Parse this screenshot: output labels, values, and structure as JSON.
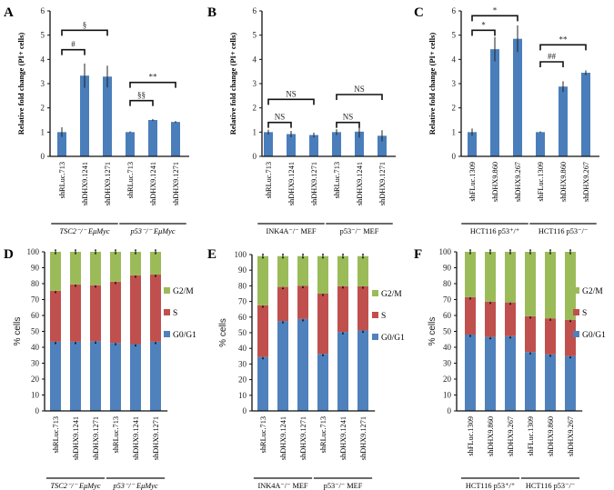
{
  "chart_data": [
    {
      "panel": "A",
      "type": "bar",
      "ylabel": "Relative fold change (PI+ cells)",
      "ylim": [
        0,
        6
      ],
      "yticks": [
        0,
        1,
        2,
        3,
        4,
        5,
        6
      ],
      "categories": [
        "shRLuc.713",
        "shDHX9.1241",
        "shDHX9.1271",
        "shRLuc.713",
        "shDHX9.1241",
        "shDHX9.1271"
      ],
      "groups": [
        {
          "label": "TSC2⁻/⁻ EμMyc",
          "start": 0,
          "end": 2
        },
        {
          "label": "p53⁻/⁻ EμMyc",
          "start": 3,
          "end": 5
        }
      ],
      "values": [
        1.0,
        3.33,
        3.29,
        1.0,
        1.5,
        1.42
      ],
      "errors": [
        0.2,
        0.5,
        0.45,
        0.03,
        0.04,
        0.04
      ],
      "significance": [
        {
          "from": 0,
          "to": 1,
          "label": "#",
          "level": 4.4
        },
        {
          "from": 0,
          "to": 2,
          "label": "§",
          "level": 5.2
        },
        {
          "from": 3,
          "to": 4,
          "label": "§§",
          "level": 2.3
        },
        {
          "from": 3,
          "to": 5,
          "label": "**",
          "level": 3.05
        }
      ]
    },
    {
      "panel": "B",
      "type": "bar",
      "ylabel": "Relative fold change (PI+ cells)",
      "ylim": [
        0,
        6
      ],
      "yticks": [
        0,
        1,
        2,
        3,
        4,
        5,
        6
      ],
      "categories": [
        "shRLuc.713",
        "shDHX9.1241",
        "shDHX9.1271",
        "shRLuc.713",
        "shDHX9.1241",
        "shDHX9.1271"
      ],
      "groups": [
        {
          "label": "INK4A⁻/⁻ MEF",
          "start": 0,
          "end": 2
        },
        {
          "label": "p53⁻/⁻ MEF",
          "start": 3,
          "end": 5
        }
      ],
      "values": [
        1.0,
        0.92,
        0.88,
        1.0,
        1.02,
        0.85
      ],
      "errors": [
        0.1,
        0.13,
        0.1,
        0.12,
        0.25,
        0.23
      ],
      "significance": [
        {
          "from": 0,
          "to": 1,
          "label": "NS",
          "level": 1.4
        },
        {
          "from": 0,
          "to": 2,
          "label": "NS",
          "level": 2.35
        },
        {
          "from": 3,
          "to": 4,
          "label": "NS",
          "level": 1.4
        },
        {
          "from": 3,
          "to": 5,
          "label": "NS",
          "level": 2.55
        }
      ]
    },
    {
      "panel": "C",
      "type": "bar",
      "ylabel": "Relative fold change (PI+ cells)",
      "ylim": [
        0,
        6
      ],
      "yticks": [
        0,
        1,
        2,
        3,
        4,
        5,
        6
      ],
      "categories": [
        "shFLuc.1309",
        "shDHX9.860",
        "shDHX9.267",
        "shFLuc.1309",
        "shDHX9.860",
        "shDHX9.267"
      ],
      "groups": [
        {
          "label": "HCT116 p53⁺/⁺",
          "start": 0,
          "end": 2
        },
        {
          "label": "HCT116 p53⁻/⁻",
          "start": 3,
          "end": 5
        }
      ],
      "values": [
        1.0,
        4.42,
        4.85,
        1.0,
        2.88,
        3.45
      ],
      "errors": [
        0.15,
        0.5,
        0.55,
        0.03,
        0.22,
        0.1
      ],
      "significance": [
        {
          "from": 0,
          "to": 1,
          "label": "*",
          "level": 5.2
        },
        {
          "from": 0,
          "to": 2,
          "label": "*",
          "level": 5.8
        },
        {
          "from": 3,
          "to": 4,
          "label": "##",
          "level": 3.9
        },
        {
          "from": 3,
          "to": 5,
          "label": "**",
          "level": 4.6
        }
      ]
    },
    {
      "panel": "D",
      "type": "bar",
      "stacked": true,
      "ylabel": "% cells",
      "ylim": [
        0,
        100
      ],
      "yticks": [
        0,
        10,
        20,
        30,
        40,
        50,
        60,
        70,
        80,
        90,
        100
      ],
      "categories": [
        "shRLuc.713",
        "shDHX9.1241",
        "shDHX9.1271",
        "shRLuc.713",
        "shDHX9.1241",
        "shDHX9.1271"
      ],
      "groups": [
        {
          "label": "TSC2⁻/⁻ EμMyc",
          "start": 0,
          "end": 2
        },
        {
          "label": "p53⁻/⁻ EμMyc",
          "start": 3,
          "end": 5
        }
      ],
      "legend_position": "right",
      "series": [
        {
          "name": "G0/G1",
          "values": [
            43.5,
            43.5,
            43.8,
            42.8,
            42.0,
            43.5
          ]
        },
        {
          "name": "S",
          "values": [
            32.0,
            36.0,
            35.2,
            38.4,
            43.2,
            42.2
          ]
        },
        {
          "name": "G2/M",
          "values": [
            24.5,
            20.5,
            21.0,
            18.8,
            14.8,
            14.3
          ]
        }
      ]
    },
    {
      "panel": "E",
      "type": "bar",
      "stacked": true,
      "ylabel": "% cells",
      "ylim": [
        0,
        100
      ],
      "yticks": [
        0,
        10,
        20,
        30,
        40,
        50,
        60,
        70,
        80,
        90,
        100
      ],
      "categories": [
        "shRLuc.713",
        "shDHX9.1241",
        "shDHX9.1271",
        "shRLuc.713",
        "shDHX9.1241",
        "shDHX9.1271"
      ],
      "groups": [
        {
          "label": "INK4A⁻/⁻ MEF",
          "start": 0,
          "end": 2
        },
        {
          "label": "p53⁻/⁻ MEF",
          "start": 3,
          "end": 5
        }
      ],
      "legend_position": "right",
      "series": [
        {
          "name": "G0/G1",
          "values": [
            34.5,
            57.5,
            58.8,
            36.5,
            50.5,
            51.5
          ]
        },
        {
          "name": "S",
          "values": [
            33.0,
            21.8,
            21.2,
            38.5,
            29.3,
            28.2
          ]
        },
        {
          "name": "G2/M",
          "values": [
            31.5,
            19.7,
            19.0,
            24.0,
            19.2,
            19.3
          ]
        }
      ]
    },
    {
      "panel": "F",
      "type": "bar",
      "stacked": true,
      "ylabel": "% cells",
      "ylim": [
        0,
        100
      ],
      "yticks": [
        0,
        10,
        20,
        30,
        40,
        50,
        60,
        70,
        80,
        90,
        100
      ],
      "categories": [
        "shFLuc.1309",
        "shDHX9.860",
        "shDHX9.267",
        "shFLuc.1309",
        "shDHX9.860",
        "shDHX9.267"
      ],
      "groups": [
        {
          "label": "HCT116 p53⁺/⁺",
          "start": 0,
          "end": 2
        },
        {
          "label": "HCT116 p53⁻/⁻",
          "start": 3,
          "end": 5
        }
      ],
      "legend_position": "right",
      "series": [
        {
          "name": "G0/G1",
          "values": [
            48.0,
            46.5,
            47.0,
            37.0,
            35.5,
            34.5
          ]
        },
        {
          "name": "S",
          "values": [
            23.5,
            22.2,
            21.2,
            22.5,
            22.7,
            22.8
          ]
        },
        {
          "name": "G2/M",
          "values": [
            28.5,
            31.3,
            31.8,
            40.5,
            41.8,
            42.7
          ]
        }
      ]
    }
  ],
  "colors": {
    "bar": "#4a7ebb",
    "G0/G1": "#4f81bd",
    "S": "#c0504d",
    "G2/M": "#9bbb59"
  }
}
